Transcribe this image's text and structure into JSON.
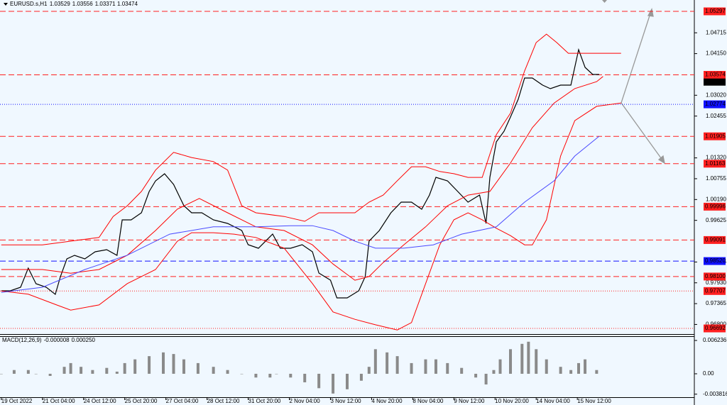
{
  "chart_data": [
    {
      "type": "line",
      "title": "EURUSD.s,H1",
      "ohlc": [
        1.03529,
        1.03556,
        1.03371,
        1.03474
      ],
      "xlim": [
        -1,
        539
      ],
      "ylim": [
        0.96558,
        1.05605
      ],
      "xticks": [
        {
          "value": 0,
          "label": "19 Oct 2022"
        },
        {
          "value": 32,
          "label": "21 Oct 04:00"
        },
        {
          "value": 64,
          "label": "24 Oct 12:00"
        },
        {
          "value": 96,
          "label": "25 Oct 20:00"
        },
        {
          "value": 128,
          "label": "27 Oct 04:00"
        },
        {
          "value": 160,
          "label": "28 Oct 12:00"
        },
        {
          "value": 192,
          "label": "31 Oct 20:00"
        },
        {
          "value": 224,
          "label": "2 Nov 04:00"
        },
        {
          "value": 256,
          "label": "3 Nov 12:00"
        },
        {
          "value": 288,
          "label": "4 Nov 20:00"
        },
        {
          "value": 320,
          "label": "8 Nov 04:00"
        },
        {
          "value": 352,
          "label": "9 Nov 12:00"
        },
        {
          "value": 384,
          "label": "10 Nov 20:00"
        },
        {
          "value": 416,
          "label": "14 Nov 04:00"
        },
        {
          "value": 448,
          "label": "15 Nov 12:00"
        }
      ],
      "yticks": [
        1.04715,
        {
          "value": 1.0415,
          "label": "1.04150"
        },
        {
          "value": 1.0302,
          "label": "1.03020"
        },
        1.02455,
        {
          "value": 1.0132,
          "label": "1.01320"
        },
        1.00755,
        {
          "value": 1.0019,
          "label": "1.00190"
        },
        0.99625,
        0.98495,
        {
          "value": 0.9793,
          "label": "0.97930"
        },
        0.97365,
        {
          "value": 0.968,
          "label": "0.96800"
        }
      ],
      "levels": [
        {
          "value": 1.05297,
          "color": "#ff2020",
          "style": "dashed"
        },
        {
          "value": 1.03574,
          "color": "#ff2020",
          "style": "dashed"
        },
        {
          "value": 1.02774,
          "color": "#1010ff",
          "style": "dotted"
        },
        {
          "value": 1.01905,
          "color": "#ff2020",
          "style": "dashed"
        },
        {
          "value": 1.01163,
          "color": "#ff2020",
          "style": "dashed"
        },
        {
          "value": 0.99996,
          "color": "#ff2020",
          "style": "dashed"
        },
        {
          "value": 0.99091,
          "color": "#ff2020",
          "style": "dashed"
        },
        {
          "value": 0.9852,
          "label": "0.98520",
          "color": "#1010ff",
          "style": "dashed"
        },
        {
          "value": 0.981,
          "label": "0.98100",
          "color": "#ff2020",
          "style": "dashed"
        },
        {
          "value": 0.97707,
          "color": "#ff2020",
          "style": "dotted"
        },
        {
          "value": 0.96692,
          "color": "#ff2020",
          "style": "dotted"
        }
      ],
      "series": [
        {
          "color": "#000000",
          "x": [
            0,
            7,
            15,
            21,
            27,
            35,
            42,
            46,
            51,
            57,
            65,
            73,
            82,
            90,
            94,
            101,
            109,
            115,
            120,
            127,
            134,
            142,
            148,
            156,
            165,
            176,
            187,
            192,
            200,
            211,
            217,
            225,
            234,
            242,
            247,
            256,
            261,
            269,
            278,
            283,
            286,
            294,
            303,
            311,
            319,
            327,
            333,
            338,
            347,
            355,
            363,
            372,
            377,
            380,
            385,
            391,
            396,
            402,
            407,
            413,
            421,
            427,
            435,
            443,
            449,
            454,
            460,
            465
          ],
          "values": [
            0.97713,
            0.97713,
            0.97809,
            0.98329,
            0.97905,
            0.97809,
            0.97617,
            0.98098,
            0.98579,
            0.98675,
            0.98579,
            0.98771,
            0.98829,
            0.98675,
            0.99638,
            0.99638,
            0.9983,
            1.00408,
            1.00696,
            1.00889,
            1.006,
            1.00023,
            0.9983,
            0.9983,
            0.99638,
            0.99541,
            0.99349,
            0.98964,
            0.98868,
            0.99253,
            0.98868,
            0.98868,
            0.98964,
            0.98771,
            0.98194,
            0.98002,
            0.9752,
            0.9752,
            0.97713,
            0.98098,
            0.9906,
            0.99349,
            0.9983,
            1.00119,
            1.00119,
            0.99926,
            1.00311,
            1.00793,
            1.00696,
            1.00408,
            1.00119,
            1.00311,
            0.99541,
            1.00793,
            1.01755,
            1.02044,
            1.02429,
            1.0291,
            1.03488,
            1.03488,
            1.03295,
            1.03199,
            1.03295,
            1.03295,
            1.04258,
            1.03776,
            1.03584,
            1.03584
          ]
        },
        {
          "color": "#ff0000",
          "x": [
            0,
            32,
            54,
            76,
            87,
            98,
            109,
            120,
            134,
            148,
            165,
            176,
            187,
            198,
            220,
            236,
            247,
            258,
            275,
            286,
            297,
            308,
            319,
            330,
            341,
            352,
            363,
            374,
            385,
            396,
            407,
            416,
            424,
            432,
            441,
            463,
            482
          ],
          "values": [
            0.9896,
            0.9896,
            0.9906,
            0.9916,
            0.9973,
            1.0002,
            1.0041,
            1.0099,
            1.0147,
            1.0133,
            1.0122,
            1.0099,
            1.0002,
            0.9983,
            0.9973,
            0.996,
            0.9983,
            0.9983,
            0.9983,
            1.0012,
            1.0031,
            1.007,
            1.0108,
            1.0108,
            1.0095,
            1.0089,
            1.0079,
            1.0079,
            1.0195,
            1.0253,
            1.0368,
            1.0445,
            1.0468,
            1.0445,
            1.0416,
            1.0416,
            1.0416
          ]
        },
        {
          "color": "#ff0000",
          "x": [
            0,
            21,
            43,
            54,
            76,
            98,
            120,
            137,
            148,
            165,
            181,
            198,
            220,
            242,
            258,
            275,
            291,
            308,
            319,
            330,
            341,
            352,
            363,
            374,
            385,
            396,
            407,
            413,
            424,
            435,
            446,
            463,
            482
          ],
          "values": [
            0.9771,
            0.9762,
            0.9733,
            0.9719,
            0.9733,
            0.9791,
            0.9829,
            0.9906,
            0.9929,
            0.9929,
            0.9925,
            0.9916,
            0.9887,
            0.9791,
            0.9714,
            0.9694,
            0.9679,
            0.9665,
            0.9685,
            0.9791,
            0.9896,
            0.9964,
            0.9983,
            0.9964,
            0.9941,
            0.9921,
            0.9896,
            0.9896,
            0.9964,
            1.0137,
            1.0233,
            1.0272,
            1.0281
          ]
        },
        {
          "color": "#ff0000",
          "x": [
            0,
            32,
            54,
            76,
            98,
            120,
            137,
            154,
            176,
            198,
            220,
            242,
            258,
            275,
            286,
            297,
            313,
            330,
            347,
            363,
            380,
            396,
            413,
            430,
            446,
            463,
            468
          ],
          "values": [
            0.9829,
            0.9829,
            0.9819,
            0.9829,
            0.9868,
            0.9935,
            0.9993,
            1.0022,
            0.9983,
            0.9945,
            0.9935,
            0.9896,
            0.9844,
            0.98,
            0.981,
            0.9848,
            0.9896,
            0.9945,
            1.0002,
            1.0031,
            1.0041,
            1.0118,
            1.0214,
            1.0281,
            1.032,
            1.0339,
            1.0353
          ]
        },
        {
          "color": "#4a4aff",
          "x": [
            0,
            32,
            65,
            98,
            131,
            165,
            198,
            225,
            242,
            258,
            275,
            291,
            313,
            336,
            358,
            385,
            407,
            430,
            446,
            465
          ],
          "values": [
            0.9767,
            0.9781,
            0.9829,
            0.9868,
            0.9925,
            0.9945,
            0.9945,
            0.9948,
            0.9948,
            0.9935,
            0.9906,
            0.9887,
            0.9887,
            0.9896,
            0.9925,
            0.9945,
            1.0012,
            1.007,
            1.0137,
            1.0191
          ]
        }
      ]
    },
    {
      "type": "bar",
      "title": "MACD(12,26,9)",
      "readout": [
        -8e-06,
        {
          "value": 0.00025,
          "label": "0.000250"
        }
      ],
      "color": "#8a8a8a",
      "ylim": [
        -0.00518,
        0.0069
      ],
      "yticks": [
        0.006236,
        {
          "value": 0,
          "label": "0.00"
        },
        -0.003816
      ],
      "x": [
        0,
        10,
        21,
        27,
        38,
        49,
        54,
        62,
        71,
        82,
        90,
        96,
        104,
        115,
        126,
        134,
        142,
        153,
        165,
        176,
        187,
        198,
        209,
        214,
        225,
        236,
        247,
        258,
        269,
        280,
        286,
        291,
        300,
        308,
        319,
        330,
        338,
        347,
        358,
        369,
        377,
        383,
        388,
        396,
        405,
        410,
        416,
        424,
        435,
        443,
        449,
        454,
        463
      ],
      "values": [
        0,
        0.0007,
        0.0007,
        0,
        -0.0004,
        0.0013,
        0.002,
        0.0013,
        0.0007,
        0.0011,
        0.0004,
        0.002,
        0.0027,
        0.0033,
        0.004,
        0.0037,
        0.0027,
        0.002,
        0.0013,
        0.0007,
        0,
        -0.0007,
        -0.0007,
        0,
        -0.0007,
        -0.0016,
        -0.0027,
        -0.0037,
        -0.0029,
        -0.0013,
        0.0013,
        0.0046,
        0.004,
        0.0033,
        0.002,
        0.0027,
        0.0027,
        0.002,
        0.0011,
        -0.0007,
        -0.002,
        0.0007,
        0.0027,
        0.0046,
        0.0056,
        0.006,
        0.0046,
        0.0027,
        0.0013,
        0.0007,
        0.002,
        0.0027,
        0.0007
      ]
    }
  ]
}
